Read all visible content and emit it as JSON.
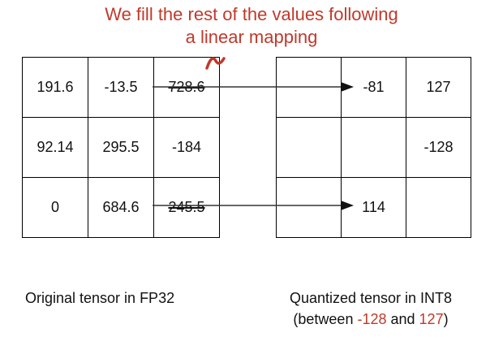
{
  "annotation": {
    "line1": "We fill the rest of the values following",
    "line2": "a linear mapping"
  },
  "original_tensor": {
    "rows": [
      [
        "191.6",
        "-13.5",
        "728.6"
      ],
      [
        "92.14",
        "295.5",
        "-184"
      ],
      [
        "0",
        "684.6",
        "245.5"
      ]
    ],
    "caption": "Original tensor in FP32"
  },
  "quantized_tensor": {
    "rows": [
      [
        "",
        "-81",
        "127"
      ],
      [
        "",
        "",
        "-128"
      ],
      [
        "",
        "114",
        ""
      ]
    ],
    "caption_line1": "Quantized tensor in INT8",
    "caption_line2_prefix": "(between ",
    "caption_min": "-128",
    "caption_and": " and ",
    "caption_max": "127",
    "caption_line2_suffix": ")"
  },
  "colors": {
    "accent": "#c0392b",
    "ink": "#111111"
  }
}
